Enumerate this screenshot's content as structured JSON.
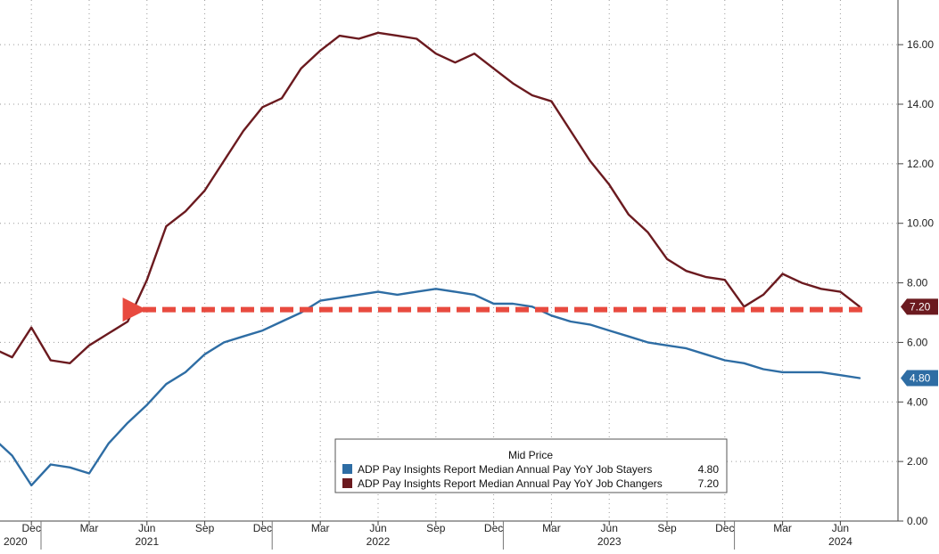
{
  "chart_data": {
    "type": "line",
    "title": "",
    "xlabel": "",
    "ylabel": "",
    "y_axis_side": "right",
    "ylim": [
      0,
      17.5
    ],
    "y_ticks": [
      0,
      2,
      4,
      6,
      8,
      10,
      12,
      14,
      16
    ],
    "y_tick_labels": [
      "0.00",
      "2.00",
      "4.00",
      "6.00",
      "8.00",
      "10.00",
      "12.00",
      "14.00",
      "16.00"
    ],
    "grid": true,
    "x": [
      "2020-10",
      "2020-11",
      "2020-12",
      "2021-01",
      "2021-02",
      "2021-03",
      "2021-04",
      "2021-05",
      "2021-06",
      "2021-07",
      "2021-08",
      "2021-09",
      "2021-10",
      "2021-11",
      "2021-12",
      "2022-01",
      "2022-02",
      "2022-03",
      "2022-04",
      "2022-05",
      "2022-06",
      "2022-07",
      "2022-08",
      "2022-09",
      "2022-10",
      "2022-11",
      "2022-12",
      "2023-01",
      "2023-02",
      "2023-03",
      "2023-04",
      "2023-05",
      "2023-06",
      "2023-07",
      "2023-08",
      "2023-09",
      "2023-10",
      "2023-11",
      "2023-12",
      "2024-01",
      "2024-02",
      "2024-03",
      "2024-04",
      "2024-05",
      "2024-06",
      "2024-07"
    ],
    "x_ticks": [
      {
        "date": "2020-12",
        "label": "Dec"
      },
      {
        "date": "2021-03",
        "label": "Mar"
      },
      {
        "date": "2021-06",
        "label": "Jun"
      },
      {
        "date": "2021-09",
        "label": "Sep"
      },
      {
        "date": "2021-12",
        "label": "Dec"
      },
      {
        "date": "2022-03",
        "label": "Mar"
      },
      {
        "date": "2022-06",
        "label": "Jun"
      },
      {
        "date": "2022-09",
        "label": "Sep"
      },
      {
        "date": "2022-12",
        "label": "Dec"
      },
      {
        "date": "2023-03",
        "label": "Mar"
      },
      {
        "date": "2023-06",
        "label": "Jun"
      },
      {
        "date": "2023-09",
        "label": "Sep"
      },
      {
        "date": "2023-12",
        "label": "Dec"
      },
      {
        "date": "2024-03",
        "label": "Mar"
      },
      {
        "date": "2024-06",
        "label": "Jun"
      }
    ],
    "year_labels": [
      {
        "year": "2020",
        "date": "2020-10"
      },
      {
        "year": "2021",
        "date": "2021-06"
      },
      {
        "year": "2022",
        "date": "2022-06"
      },
      {
        "year": "2023",
        "date": "2023-06"
      },
      {
        "year": "2024",
        "date": "2024-06"
      }
    ],
    "series": [
      {
        "name": "ADP Pay Insights Report Median Annual Pay YoY Job Stayers",
        "color": "#2e6da4",
        "last_label": "4.80",
        "values": [
          2.8,
          2.2,
          1.2,
          1.9,
          1.8,
          1.6,
          2.6,
          3.3,
          3.9,
          4.6,
          5.0,
          5.6,
          6.0,
          6.2,
          6.4,
          6.7,
          7.0,
          7.4,
          7.5,
          7.6,
          7.7,
          7.6,
          7.7,
          7.8,
          7.7,
          7.6,
          7.3,
          7.3,
          7.2,
          6.9,
          6.7,
          6.6,
          6.4,
          6.2,
          6.0,
          5.9,
          5.8,
          5.6,
          5.4,
          5.3,
          5.1,
          5.0,
          5.0,
          5.0,
          4.9,
          4.8
        ]
      },
      {
        "name": "ADP Pay Insights Report Median Annual Pay YoY Job Changers",
        "color": "#6b1a1f",
        "last_label": "7.20",
        "values": [
          5.8,
          5.5,
          6.5,
          5.4,
          5.3,
          5.9,
          6.3,
          6.7,
          8.1,
          9.9,
          10.4,
          11.1,
          12.1,
          13.1,
          13.9,
          14.2,
          15.2,
          15.8,
          16.3,
          16.2,
          16.4,
          16.3,
          16.2,
          15.7,
          15.4,
          15.7,
          15.2,
          14.7,
          14.3,
          14.1,
          13.1,
          12.1,
          11.3,
          10.3,
          9.7,
          8.8,
          8.4,
          8.2,
          8.1,
          7.2,
          7.6,
          8.3,
          8.0,
          7.8,
          7.7,
          7.2
        ]
      }
    ],
    "annotations": [
      {
        "type": "dashed-arrow",
        "color": "#e84a3f",
        "y": 7.1,
        "from": "2024-07",
        "to": "2021-05"
      }
    ],
    "legend": {
      "title": "Mid Price",
      "position": "bottom-right",
      "entries": [
        {
          "label": "ADP Pay Insights Report Median Annual Pay YoY Job Stayers",
          "value": "4.80",
          "color": "#2e6da4"
        },
        {
          "label": "ADP Pay Insights Report Median Annual Pay YoY Job Changers",
          "value": "7.20",
          "color": "#6b1a1f"
        }
      ]
    }
  }
}
